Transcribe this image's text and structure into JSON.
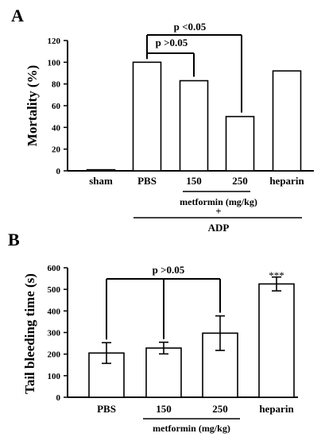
{
  "chart_data": [
    {
      "type": "bar",
      "panel_label": "A",
      "ylabel": "Mortality (%)",
      "ylim": [
        0,
        120
      ],
      "y_ticks": [
        0,
        20,
        40,
        60,
        80,
        100,
        120
      ],
      "categories": [
        "sham",
        "PBS",
        "150",
        "250",
        "heparin"
      ],
      "values": [
        1,
        100,
        83,
        50,
        92
      ],
      "group_label": "metformin (mg/kg)",
      "plus_label": "+",
      "treatment_label": "ADP",
      "annotations": [
        "p >0.05",
        "p <0.05"
      ]
    },
    {
      "type": "bar",
      "panel_label": "B",
      "ylabel": "Tail bleeding time (s)",
      "ylim": [
        0,
        600
      ],
      "y_ticks": [
        0,
        100,
        200,
        300,
        400,
        500,
        600
      ],
      "categories": [
        "PBS",
        "150",
        "250",
        "heparin"
      ],
      "values": [
        205,
        228,
        297,
        525
      ],
      "errors": [
        48,
        27,
        80,
        32
      ],
      "group_label": "metformin  (mg/kg)",
      "annotations": [
        "p >0.05",
        "***"
      ]
    }
  ]
}
